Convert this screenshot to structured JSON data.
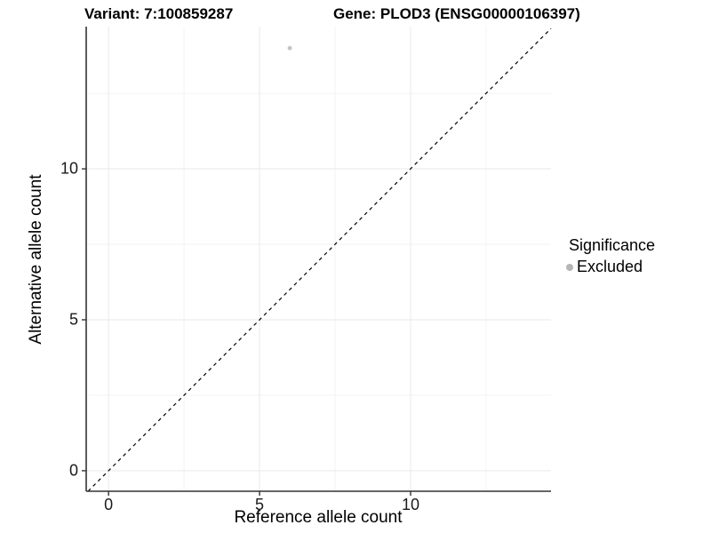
{
  "header": {
    "variant_title": "Variant: 7:100859287",
    "gene_title": "Gene: PLOD3 (ENSG00000106397)"
  },
  "chart_data": {
    "type": "scatter",
    "xlabel": "Reference allele count",
    "ylabel": "Alternative allele count",
    "xlim": [
      -0.74,
      14.65
    ],
    "ylim": [
      -0.68,
      14.71
    ],
    "x_ticks": [
      0,
      5,
      10
    ],
    "y_ticks": [
      0,
      5,
      10
    ],
    "minor_ticks": [
      2.5,
      7.5,
      12.5
    ],
    "grid": true,
    "identity_line": {
      "slope": 1,
      "intercept": 0,
      "style": "dashed",
      "color": "#000000"
    },
    "points": [
      {
        "x": 6,
        "y": 14,
        "series": "Excluded"
      }
    ],
    "series_colors": {
      "Excluded": "#c3c3c3"
    },
    "legend": {
      "title": "Significance",
      "position": "right",
      "items": [
        {
          "label": "Excluded",
          "color": "#b5b5b5"
        }
      ]
    }
  },
  "colors": {
    "grid_major": "#e9e9e9",
    "grid_minor": "#f3f3f3",
    "axis_line": "#333333",
    "tick_mark": "#333333"
  }
}
